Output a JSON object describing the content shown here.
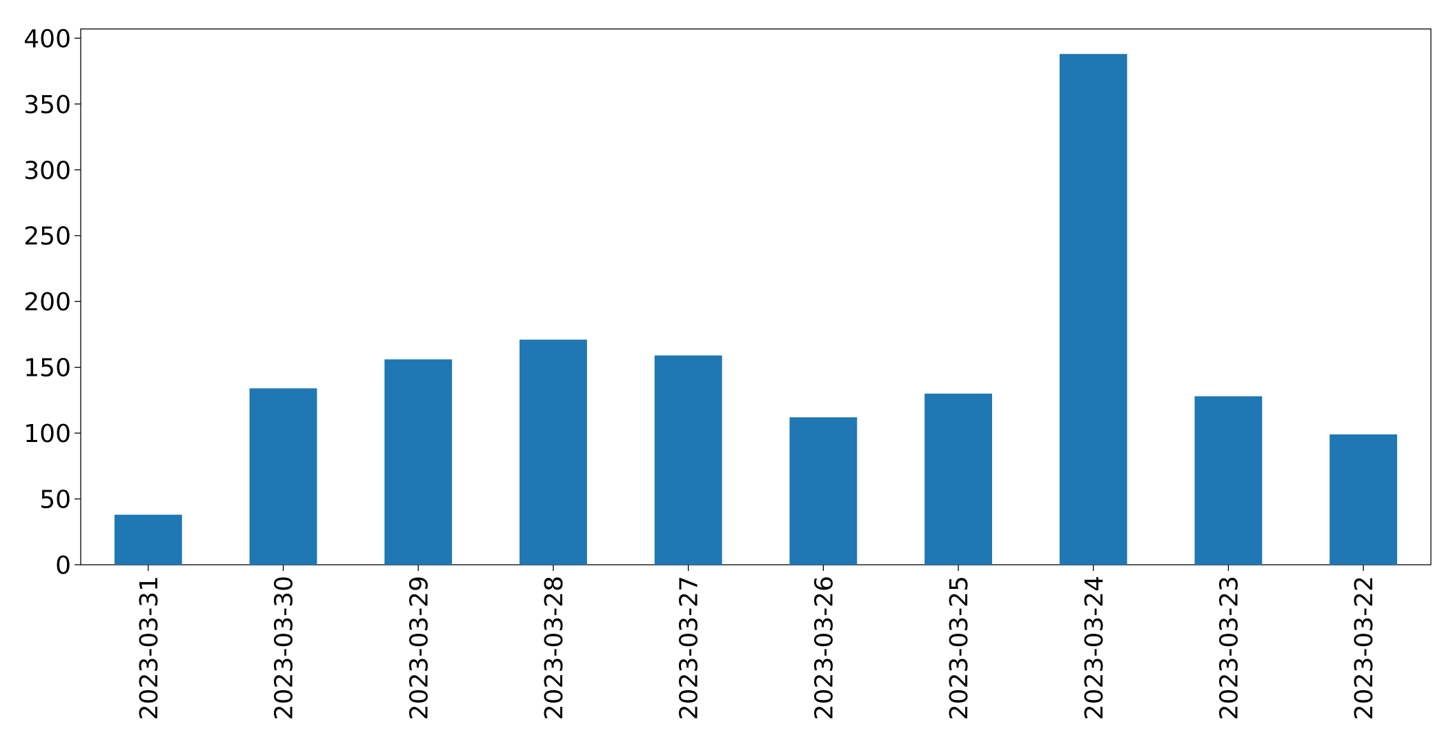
{
  "chart_data": {
    "type": "bar",
    "categories": [
      "2023-03-31",
      "2023-03-30",
      "2023-03-29",
      "2023-03-28",
      "2023-03-27",
      "2023-03-26",
      "2023-03-25",
      "2023-03-24",
      "2023-03-23",
      "2023-03-22"
    ],
    "values": [
      38,
      134,
      156,
      171,
      159,
      112,
      130,
      388,
      128,
      99
    ],
    "color": "#1f77b4",
    "ylim": [
      0,
      407
    ],
    "yticks": [
      0,
      50,
      100,
      150,
      200,
      250,
      300,
      350,
      400
    ],
    "grid": false
  }
}
